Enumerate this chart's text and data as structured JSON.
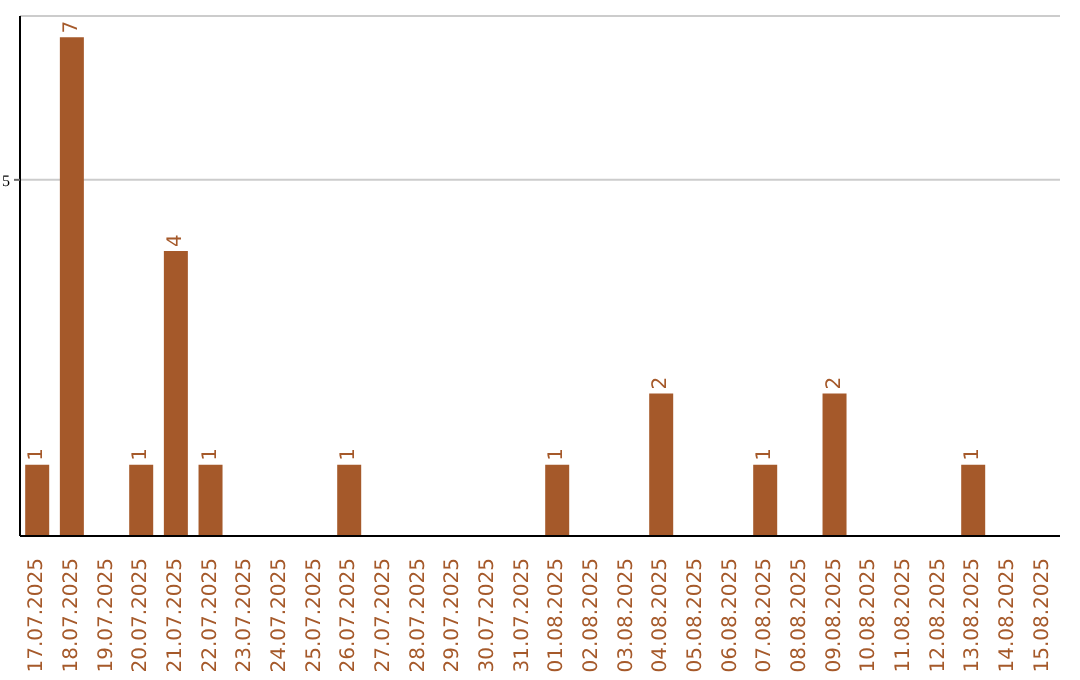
{
  "chart_data": {
    "type": "bar",
    "categories": [
      "17.07.2025",
      "18.07.2025",
      "19.07.2025",
      "20.07.2025",
      "21.07.2025",
      "22.07.2025",
      "23.07.2025",
      "24.07.2025",
      "25.07.2025",
      "26.07.2025",
      "27.07.2025",
      "28.07.2025",
      "29.07.2025",
      "30.07.2025",
      "31.07.2025",
      "01.08.2025",
      "02.08.2025",
      "03.08.2025",
      "04.08.2025",
      "05.08.2025",
      "06.08.2025",
      "07.08.2025",
      "08.08.2025",
      "09.08.2025",
      "10.08.2025",
      "11.08.2025",
      "12.08.2025",
      "13.08.2025",
      "14.08.2025",
      "15.08.2025"
    ],
    "values": [
      1,
      7,
      0,
      1,
      4,
      1,
      0,
      0,
      0,
      1,
      0,
      0,
      0,
      0,
      0,
      1,
      0,
      0,
      2,
      0,
      0,
      1,
      0,
      2,
      0,
      0,
      0,
      1,
      0,
      0
    ],
    "value_labels": [
      "1",
      "7",
      null,
      "1",
      "4",
      "1",
      null,
      null,
      null,
      "1",
      null,
      null,
      null,
      null,
      null,
      "1",
      null,
      null,
      "2",
      null,
      null,
      "1",
      null,
      "2",
      null,
      null,
      null,
      "1",
      null,
      null
    ],
    "color": "#a5592a",
    "ylim": [
      0,
      7.3
    ],
    "yticks": [
      5
    ],
    "grid": "y"
  }
}
